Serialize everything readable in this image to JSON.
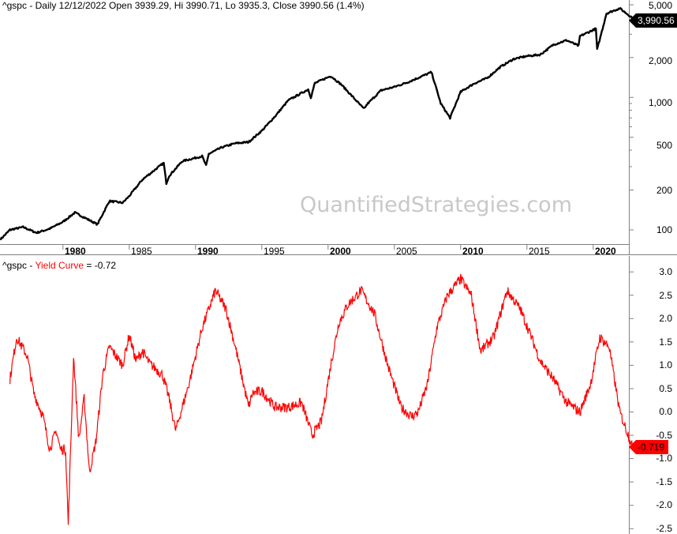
{
  "top_pane": {
    "title_prefix": "^gspc - Daily 12/12/2022 Open 3939.29, Hi 3990.71, Lo 3935.3, Close 3990.56 (1.4%)",
    "last_value_tag": "3,990.56",
    "y_ticks": [
      "5,000",
      "2,000",
      "1,000",
      "500",
      "200",
      "100"
    ],
    "line_color": "#000000"
  },
  "bottom_pane": {
    "title_symbol": "^gspc - ",
    "title_indicator": "Yield Curve",
    "title_value": " = -0.72",
    "last_value_tag": "-0.719",
    "y_ticks": [
      "3.0",
      "2.5",
      "2.0",
      "1.5",
      "1.0",
      "0.5",
      "0.0",
      "-0.5",
      "-1.0",
      "-1.5",
      "-2.0",
      "-2.5"
    ],
    "line_color": "#ff0000"
  },
  "x_axis": {
    "ticks": [
      {
        "label": "1980",
        "bold": true
      },
      {
        "label": "1985",
        "bold": false
      },
      {
        "label": "1990",
        "bold": true
      },
      {
        "label": "1995",
        "bold": false
      },
      {
        "label": "2000",
        "bold": true
      },
      {
        "label": "2005",
        "bold": false
      },
      {
        "label": "2010",
        "bold": true
      },
      {
        "label": "2015",
        "bold": false
      },
      {
        "label": "2020",
        "bold": true
      }
    ]
  },
  "watermark": "QuantifiedStrategies.com",
  "chart_data": [
    {
      "type": "line",
      "title": "^gspc - Daily 12/12/2022 Open 3939.29, Hi 3990.71, Lo 3935.3, Close 3990.56 (1.4%)",
      "xlabel": "",
      "ylabel": "",
      "yscale": "log",
      "ylim": [
        80,
        5500
      ],
      "y_ticks": [
        100,
        200,
        500,
        1000,
        2000,
        5000
      ],
      "x": [
        1975.3,
        1976,
        1977,
        1978,
        1979,
        1980,
        1980.9,
        1982.6,
        1983.5,
        1984.5,
        1985,
        1986,
        1987.6,
        1987.8,
        1988,
        1989,
        1990.5,
        1990.8,
        1991,
        1992,
        1993,
        1994,
        1995,
        1996,
        1997,
        1998.5,
        1998.7,
        1999,
        2000.2,
        2001,
        2002.7,
        2003,
        2004,
        2005,
        2006,
        2007.8,
        2008.5,
        2009.2,
        2010,
        2011,
        2012,
        2013,
        2014,
        2015,
        2016,
        2017,
        2018,
        2018.9,
        2019,
        2020.2,
        2020.3,
        2021,
        2022,
        2022.95
      ],
      "values": [
        85,
        100,
        105,
        95,
        102,
        115,
        135,
        110,
        165,
        160,
        180,
        240,
        320,
        225,
        255,
        330,
        360,
        305,
        375,
        420,
        450,
        460,
        560,
        720,
        950,
        1150,
        1000,
        1280,
        1450,
        1250,
        820,
        900,
        1130,
        1200,
        1300,
        1550,
        900,
        700,
        1100,
        1270,
        1400,
        1700,
        1950,
        2050,
        2100,
        2500,
        2700,
        2450,
        2900,
        3300,
        2300,
        4300,
        4700,
        3990.56
      ],
      "series": [
        {
          "name": "^gspc Close",
          "color": "#000000"
        }
      ],
      "annotations": [
        "Last value: 3,990.56"
      ]
    },
    {
      "type": "line",
      "title": "^gspc - Yield Curve = -0.72",
      "xlabel": "",
      "ylabel": "",
      "ylim": [
        -2.6,
        3.1
      ],
      "y_ticks": [
        -2.5,
        -2.0,
        -1.5,
        -1.0,
        -0.5,
        0.0,
        0.5,
        1.0,
        1.5,
        2.0,
        2.5,
        3.0
      ],
      "x": [
        1976,
        1976.5,
        1977.3,
        1977.8,
        1978.5,
        1979,
        1979.5,
        1979.8,
        1980.2,
        1980.4,
        1980.8,
        1981.2,
        1981.6,
        1982,
        1982.5,
        1983,
        1983.5,
        1984.5,
        1985,
        1985.5,
        1986,
        1986.5,
        1987.5,
        1988,
        1988.5,
        1989.5,
        1990.5,
        1991.5,
        1992.3,
        1993,
        1994,
        1994.3,
        1995,
        1996,
        1997,
        1998,
        1998.8,
        1999.5,
        2000.2,
        2000.8,
        2001.5,
        2002.5,
        2003.5,
        2004.5,
        2005.5,
        2006.3,
        2006.8,
        2007.5,
        2008.2,
        2009,
        2010,
        2010.8,
        2011.5,
        2012.5,
        2013.5,
        2014.5,
        2015.2,
        2016,
        2017,
        2018,
        2019,
        2019.8,
        2020.5,
        2021.2,
        2022,
        2022.95
      ],
      "values": [
        0.7,
        1.6,
        1.2,
        0.4,
        -0.1,
        -0.8,
        -0.4,
        -0.8,
        -0.8,
        -2.4,
        1.2,
        -0.6,
        0.3,
        -1.3,
        -0.6,
        0.8,
        1.4,
        1.0,
        1.65,
        1.1,
        1.3,
        1.05,
        0.8,
        0.3,
        -0.4,
        0.6,
        1.8,
        2.6,
        2.2,
        1.4,
        0.1,
        0.4,
        0.45,
        0.1,
        0.1,
        0.2,
        -0.5,
        -0.2,
        1.0,
        1.9,
        2.3,
        2.6,
        2.1,
        1.0,
        0.1,
        -0.1,
        0.0,
        0.6,
        1.8,
        2.5,
        2.85,
        2.5,
        1.3,
        1.6,
        2.6,
        2.2,
        1.7,
        1.1,
        0.7,
        0.2,
        0.0,
        0.6,
        1.6,
        1.4,
        0.0,
        -0.719
      ],
      "series": [
        {
          "name": "Yield Curve",
          "color": "#ff0000"
        }
      ],
      "annotations": [
        "Last value: -0.719"
      ]
    }
  ]
}
